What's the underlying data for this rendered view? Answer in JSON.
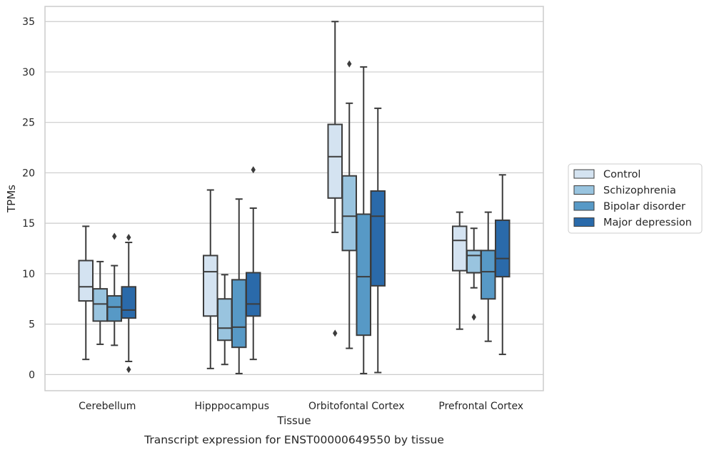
{
  "caption": "Transcript expression for ENST00000649550 by tissue",
  "chart_data": {
    "type": "box",
    "xlabel": "Tissue",
    "ylabel": "TPMs",
    "ylim": [
      -1.6,
      36.5
    ],
    "yticks": [
      0,
      5,
      10,
      15,
      20,
      25,
      30,
      35
    ],
    "grid": "horizontal",
    "legend_position": "right",
    "categories": [
      "Cerebellum",
      "Hipppocampus",
      "Orbitofontal Cortex",
      "Prefrontal Cortex"
    ],
    "series": [
      {
        "name": "Control",
        "color": "#d4e3f1",
        "boxes": [
          {
            "whisker_low": 1.5,
            "q1": 7.3,
            "median": 8.7,
            "q3": 11.3,
            "whisker_high": 14.7,
            "outliers": []
          },
          {
            "whisker_low": 0.6,
            "q1": 5.8,
            "median": 10.2,
            "q3": 11.8,
            "whisker_high": 18.3,
            "outliers": []
          },
          {
            "whisker_low": 14.1,
            "q1": 17.5,
            "median": 21.6,
            "q3": 24.8,
            "whisker_high": 35.0,
            "outliers": [
              4.1
            ]
          },
          {
            "whisker_low": 4.5,
            "q1": 10.3,
            "median": 13.3,
            "q3": 14.7,
            "whisker_high": 16.1,
            "outliers": []
          }
        ]
      },
      {
        "name": "Schizophrenia",
        "color": "#99c4df",
        "boxes": [
          {
            "whisker_low": 3.0,
            "q1": 5.3,
            "median": 7.0,
            "q3": 8.5,
            "whisker_high": 11.2,
            "outliers": []
          },
          {
            "whisker_low": 1.0,
            "q1": 3.4,
            "median": 4.6,
            "q3": 7.5,
            "whisker_high": 9.9,
            "outliers": []
          },
          {
            "whisker_low": 2.6,
            "q1": 12.3,
            "median": 15.7,
            "q3": 19.7,
            "whisker_high": 26.9,
            "outliers": [
              30.8
            ]
          },
          {
            "whisker_low": 8.6,
            "q1": 10.1,
            "median": 11.8,
            "q3": 12.3,
            "whisker_high": 14.5,
            "outliers": [
              5.7
            ]
          }
        ]
      },
      {
        "name": "Bipolar disorder",
        "color": "#5799c6",
        "boxes": [
          {
            "whisker_low": 2.9,
            "q1": 5.3,
            "median": 6.7,
            "q3": 7.8,
            "whisker_high": 10.8,
            "outliers": [
              13.7
            ]
          },
          {
            "whisker_low": 0.1,
            "q1": 2.7,
            "median": 4.7,
            "q3": 9.4,
            "whisker_high": 17.4,
            "outliers": []
          },
          {
            "whisker_low": 0.1,
            "q1": 3.9,
            "median": 9.7,
            "q3": 15.9,
            "whisker_high": 30.5,
            "outliers": []
          },
          {
            "whisker_low": 3.3,
            "q1": 7.5,
            "median": 10.2,
            "q3": 12.3,
            "whisker_high": 16.1,
            "outliers": []
          }
        ]
      },
      {
        "name": "Major depression",
        "color": "#2a6aaa",
        "boxes": [
          {
            "whisker_low": 1.3,
            "q1": 5.6,
            "median": 6.4,
            "q3": 8.7,
            "whisker_high": 13.1,
            "outliers": [
              0.5,
              13.6
            ]
          },
          {
            "whisker_low": 1.5,
            "q1": 5.8,
            "median": 7.0,
            "q3": 10.1,
            "whisker_high": 16.5,
            "outliers": [
              20.3
            ]
          },
          {
            "whisker_low": 0.2,
            "q1": 8.8,
            "median": 15.7,
            "q3": 18.2,
            "whisker_high": 26.4,
            "outliers": []
          },
          {
            "whisker_low": 2.0,
            "q1": 9.7,
            "median": 11.5,
            "q3": 15.3,
            "whisker_high": 19.8,
            "outliers": []
          }
        ]
      }
    ]
  }
}
